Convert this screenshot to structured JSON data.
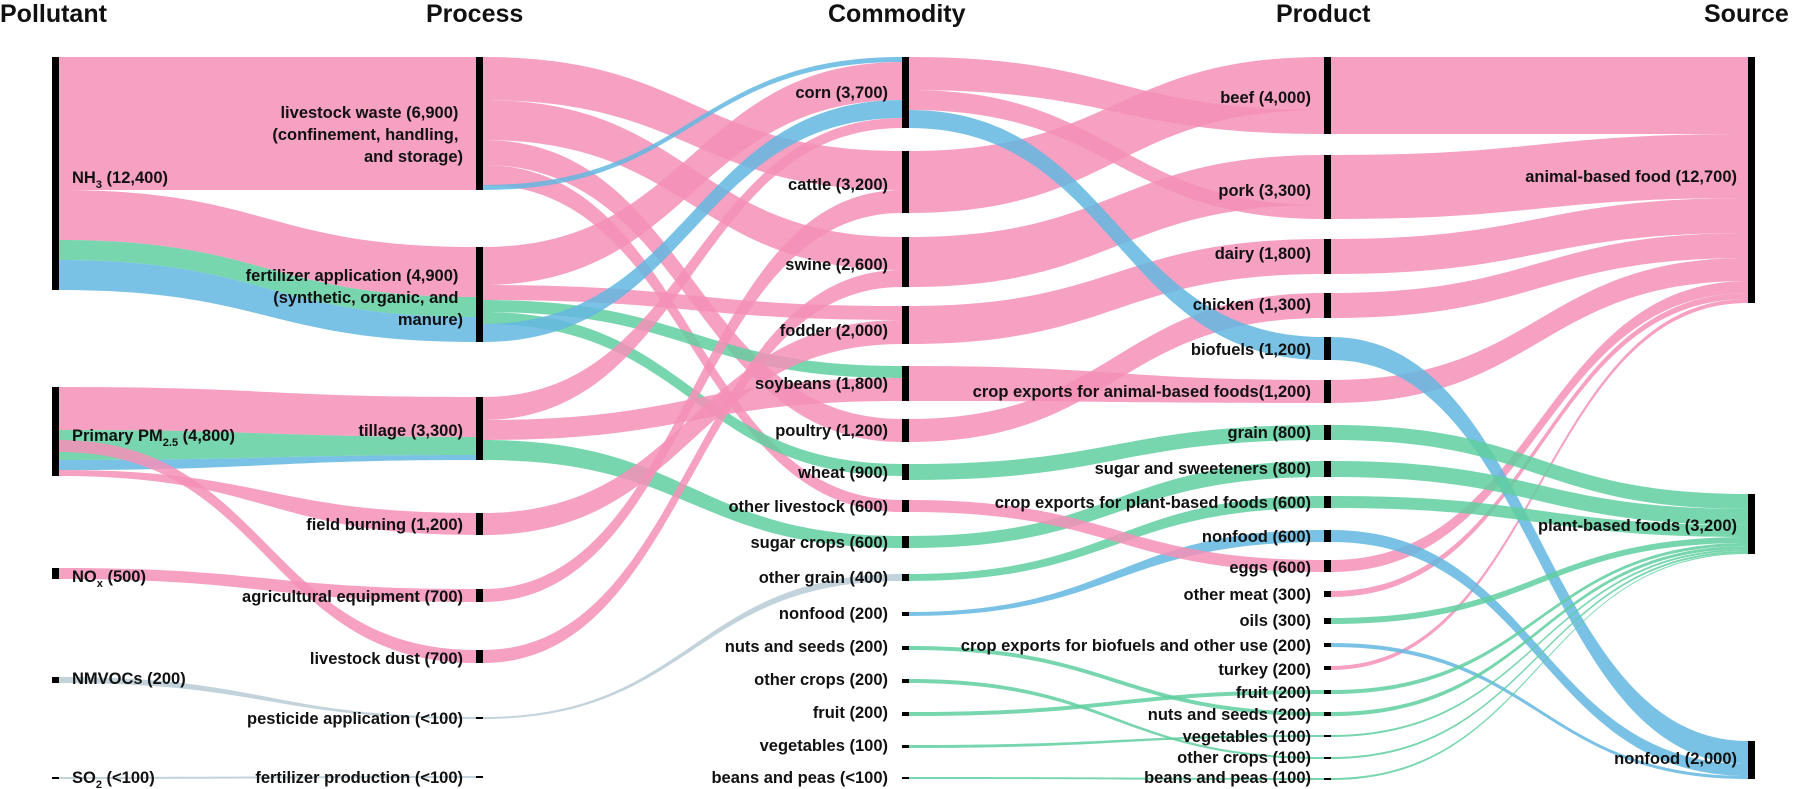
{
  "columns": {
    "pollutant": "Pollutant",
    "process": "Process",
    "commodity": "Commodity",
    "product": "Product",
    "source": "Source"
  },
  "colors": {
    "NH3": "#f48fb7",
    "PM25": "#5fcf9f",
    "NOx_NMVOC": "#63b7e0",
    "minor": "#b8cbd6"
  },
  "nodes": {
    "pollutant": [
      {
        "key": "nh3",
        "label_main": "NH",
        "label_sub": "3",
        "label_rest": " (12,400)"
      },
      {
        "key": "pm25",
        "label_main": "Primary PM",
        "label_sub": "2.5",
        "label_rest": " (4,800)"
      },
      {
        "key": "nox",
        "label_main": "NO",
        "label_sub": "x",
        "label_rest": " (500)"
      },
      {
        "key": "nmvoc",
        "label": "NMVOCs (200)"
      },
      {
        "key": "so2",
        "label_main": "SO",
        "label_sub": "2",
        "label_rest": " (<100)"
      }
    ],
    "process": [
      {
        "key": "livestock_waste",
        "lines": [
          "livestock waste (6,900)",
          "(confinement, handling,",
          "and storage)"
        ]
      },
      {
        "key": "fertilizer",
        "lines": [
          "fertilizer application (4,900)",
          "(synthetic, organic, and",
          "manure)"
        ]
      },
      {
        "key": "tillage",
        "lines": [
          "tillage (3,300)"
        ]
      },
      {
        "key": "field_burning",
        "lines": [
          "field burning (1,200)"
        ]
      },
      {
        "key": "ag_equipment",
        "lines": [
          "agricultural equipment (700)"
        ]
      },
      {
        "key": "livestock_dust",
        "lines": [
          "livestock dust (700)"
        ]
      },
      {
        "key": "pesticide",
        "lines": [
          "pesticide application (<100)"
        ]
      },
      {
        "key": "fert_production",
        "lines": [
          "fertilizer production (<100)"
        ]
      }
    ],
    "commodity": [
      {
        "key": "corn",
        "label": "corn (3,700)"
      },
      {
        "key": "cattle",
        "label": "cattle (3,200)"
      },
      {
        "key": "swine",
        "label": "swine (2,600)"
      },
      {
        "key": "fodder",
        "label": "fodder (2,000)"
      },
      {
        "key": "soybeans",
        "label": "soybeans (1,800)"
      },
      {
        "key": "poultry",
        "label": "poultry (1,200)"
      },
      {
        "key": "wheat",
        "label": "wheat (900)"
      },
      {
        "key": "other_livestock",
        "label": "other livestock (600)"
      },
      {
        "key": "sugar_crops",
        "label": "sugar crops (600)"
      },
      {
        "key": "other_grain",
        "label": "other grain (400)"
      },
      {
        "key": "nonfood_c",
        "label": "nonfood (200)"
      },
      {
        "key": "nuts_c",
        "label": "nuts and seeds (200)"
      },
      {
        "key": "other_crops_c",
        "label": "other crops (200)"
      },
      {
        "key": "fruit_c",
        "label": "fruit (200)"
      },
      {
        "key": "vegetables_c",
        "label": "vegetables (100)"
      },
      {
        "key": "beans_c",
        "label": "beans and peas (<100)"
      }
    ],
    "product": [
      {
        "key": "beef",
        "label": "beef (4,000)"
      },
      {
        "key": "pork",
        "label": "pork (3,300)"
      },
      {
        "key": "dairy",
        "label": "dairy (1,800)"
      },
      {
        "key": "chicken",
        "label": "chicken (1,300)"
      },
      {
        "key": "biofuels",
        "label": "biofuels (1,200)"
      },
      {
        "key": "crop_exp_animal",
        "label": "crop exports for animal-based foods(1,200)"
      },
      {
        "key": "grain",
        "label": "grain (800)"
      },
      {
        "key": "sugar",
        "label": "sugar and sweeteners (800)"
      },
      {
        "key": "crop_exp_plant",
        "label": "crop exports for plant-based foods (600)"
      },
      {
        "key": "nonfood_p",
        "label": "nonfood (600)"
      },
      {
        "key": "eggs",
        "label": "eggs (600)"
      },
      {
        "key": "other_meat",
        "label": "other meat (300)"
      },
      {
        "key": "oils",
        "label": "oils (300)"
      },
      {
        "key": "crop_exp_bio",
        "label": "crop exports for biofuels and other use (200)"
      },
      {
        "key": "turkey",
        "label": "turkey (200)"
      },
      {
        "key": "fruit_p",
        "label": "fruit (200)"
      },
      {
        "key": "nuts_p",
        "label": "nuts and seeds (200)"
      },
      {
        "key": "vegetables_p",
        "label": "vegetables (100)"
      },
      {
        "key": "other_crops_p",
        "label": "other crops (100)"
      },
      {
        "key": "beans_p",
        "label": "beans and peas (100)"
      }
    ],
    "source": [
      {
        "key": "animal",
        "label": "animal-based food (12,700)"
      },
      {
        "key": "plant",
        "label": "plant-based foods (3,200)"
      },
      {
        "key": "nonfood_s",
        "label": "nonfood (2,000)"
      }
    ]
  }
}
